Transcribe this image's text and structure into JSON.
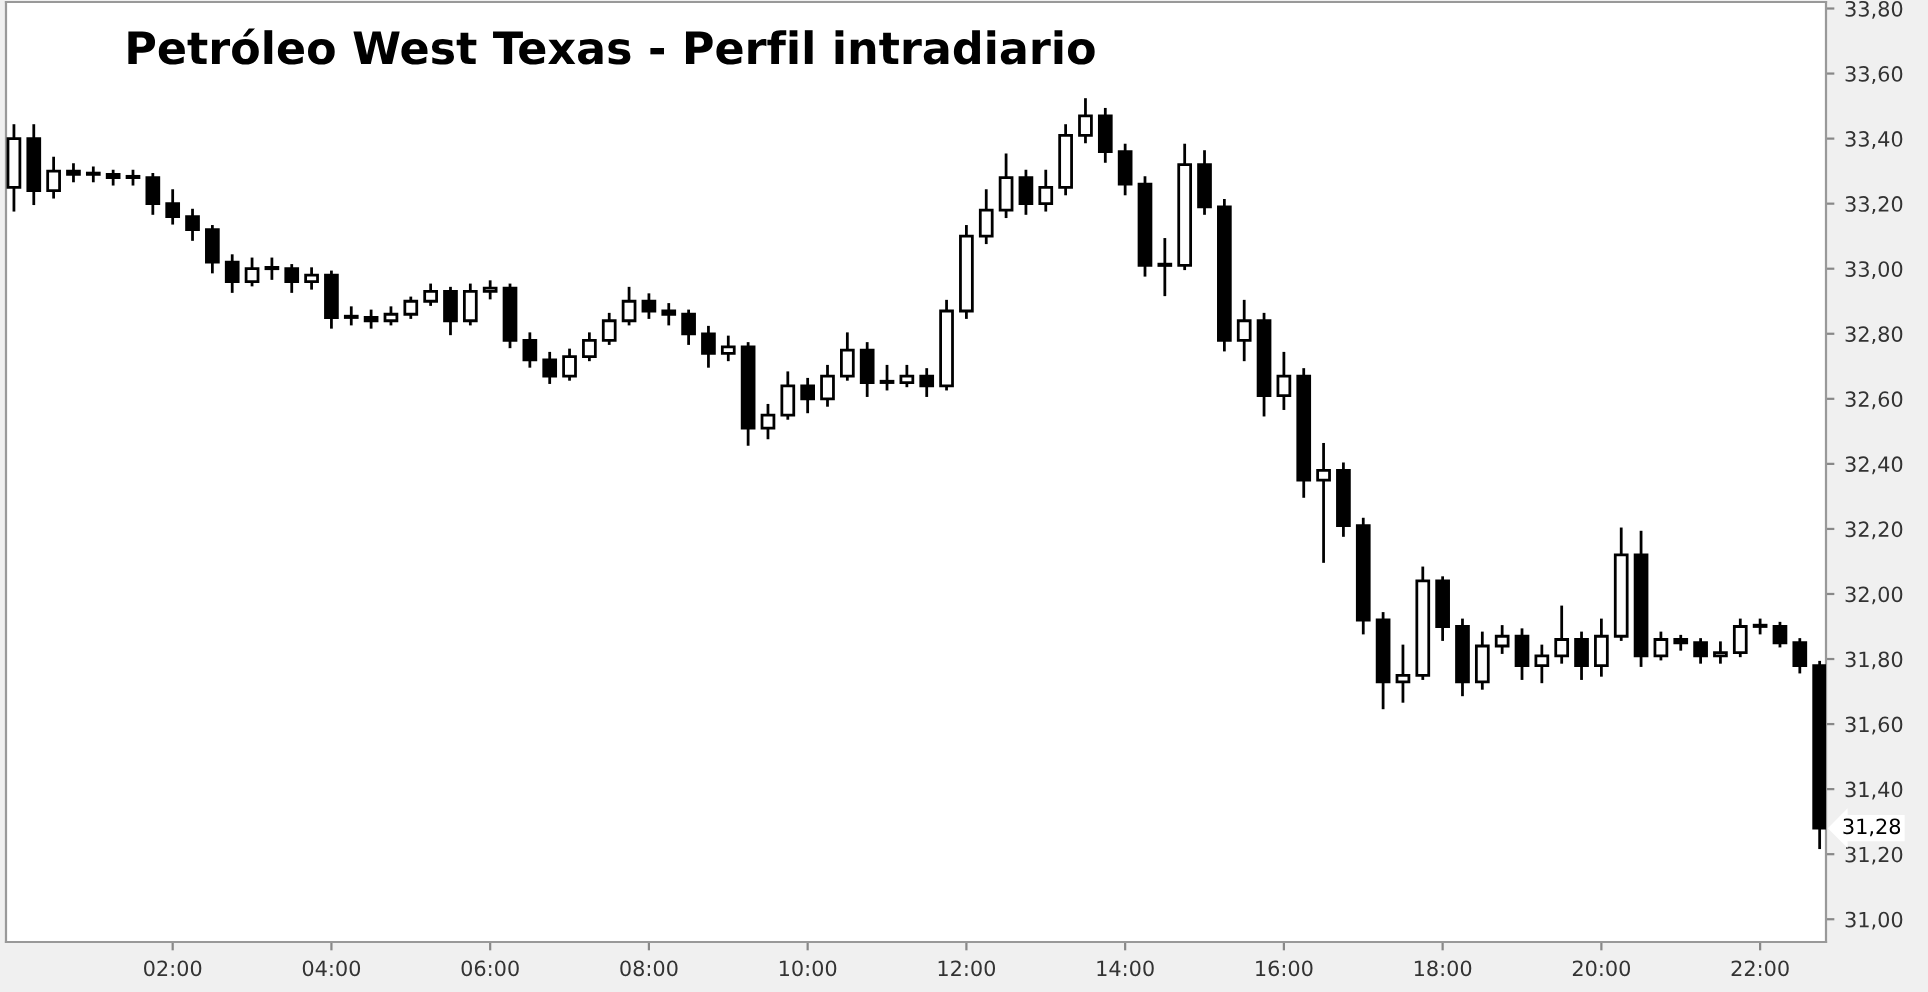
{
  "chart_data": {
    "type": "candlestick",
    "title": "Petróleo West Texas - Perfil intradiario",
    "x": [
      0,
      0.25,
      0.5,
      0.75,
      1,
      1.25,
      1.5,
      1.75,
      2,
      2.25,
      2.5,
      2.75,
      3,
      3.25,
      3.5,
      3.75,
      4,
      4.25,
      4.5,
      4.75,
      5,
      5.25,
      5.5,
      5.75,
      6,
      6.25,
      6.5,
      6.75,
      7,
      7.25,
      7.5,
      7.75,
      8,
      8.25,
      8.5,
      8.75,
      9,
      9.25,
      9.5,
      9.75,
      10,
      10.25,
      10.5,
      10.75,
      11,
      11.25,
      11.5,
      11.75,
      12,
      12.25,
      12.5,
      12.75,
      13,
      13.25,
      13.5,
      13.75,
      14,
      14.25,
      14.5,
      14.75,
      15,
      15.25,
      15.5,
      15.75,
      16,
      16.25,
      16.5,
      16.75,
      17,
      17.25,
      17.5,
      17.75,
      18,
      18.25,
      18.5,
      18.75,
      19,
      19.25,
      19.5,
      19.75,
      20,
      20.25,
      20.5,
      20.75,
      21,
      21.25,
      21.5,
      21.75,
      22,
      22.25,
      22.5,
      22.75
    ],
    "ohlc": [
      [
        33.25,
        33.44,
        33.18,
        33.4
      ],
      [
        33.4,
        33.44,
        33.2,
        33.24
      ],
      [
        33.24,
        33.34,
        33.22,
        33.3
      ],
      [
        33.3,
        33.32,
        33.27,
        33.29
      ],
      [
        33.29,
        33.31,
        33.27,
        33.29
      ],
      [
        33.29,
        33.3,
        33.26,
        33.28
      ],
      [
        33.28,
        33.3,
        33.26,
        33.28
      ],
      [
        33.28,
        33.29,
        33.17,
        33.2
      ],
      [
        33.2,
        33.24,
        33.14,
        33.16
      ],
      [
        33.16,
        33.18,
        33.09,
        33.12
      ],
      [
        33.12,
        33.13,
        32.99,
        33.02
      ],
      [
        33.02,
        33.04,
        32.93,
        32.96
      ],
      [
        32.96,
        33.03,
        32.95,
        33.0
      ],
      [
        33.0,
        33.03,
        32.97,
        33.0
      ],
      [
        33.0,
        33.01,
        32.93,
        32.96
      ],
      [
        32.96,
        33.0,
        32.94,
        32.98
      ],
      [
        32.98,
        32.99,
        32.82,
        32.85
      ],
      [
        32.85,
        32.88,
        32.83,
        32.85
      ],
      [
        32.85,
        32.87,
        32.82,
        32.84
      ],
      [
        32.84,
        32.88,
        32.83,
        32.86
      ],
      [
        32.86,
        32.91,
        32.85,
        32.9
      ],
      [
        32.9,
        32.95,
        32.89,
        32.93
      ],
      [
        32.93,
        32.94,
        32.8,
        32.84
      ],
      [
        32.84,
        32.95,
        32.83,
        32.93
      ],
      [
        32.93,
        32.96,
        32.91,
        32.94
      ],
      [
        32.94,
        32.95,
        32.76,
        32.78
      ],
      [
        32.78,
        32.8,
        32.7,
        32.72
      ],
      [
        32.72,
        32.74,
        32.65,
        32.67
      ],
      [
        32.67,
        32.75,
        32.66,
        32.73
      ],
      [
        32.73,
        32.8,
        32.72,
        32.78
      ],
      [
        32.78,
        32.86,
        32.77,
        32.84
      ],
      [
        32.84,
        32.94,
        32.83,
        32.9
      ],
      [
        32.9,
        32.92,
        32.85,
        32.87
      ],
      [
        32.87,
        32.89,
        32.83,
        32.86
      ],
      [
        32.86,
        32.87,
        32.77,
        32.8
      ],
      [
        32.8,
        32.82,
        32.7,
        32.74
      ],
      [
        32.74,
        32.79,
        32.72,
        32.76
      ],
      [
        32.76,
        32.77,
        32.46,
        32.51
      ],
      [
        32.51,
        32.58,
        32.48,
        32.55
      ],
      [
        32.55,
        32.68,
        32.54,
        32.64
      ],
      [
        32.64,
        32.66,
        32.56,
        32.6
      ],
      [
        32.6,
        32.7,
        32.58,
        32.67
      ],
      [
        32.67,
        32.8,
        32.66,
        32.75
      ],
      [
        32.75,
        32.77,
        32.61,
        32.65
      ],
      [
        32.65,
        32.7,
        32.63,
        32.65
      ],
      [
        32.65,
        32.7,
        32.64,
        32.67
      ],
      [
        32.67,
        32.69,
        32.61,
        32.64
      ],
      [
        32.64,
        32.9,
        32.63,
        32.87
      ],
      [
        32.87,
        33.13,
        32.85,
        33.1
      ],
      [
        33.1,
        33.24,
        33.08,
        33.18
      ],
      [
        33.18,
        33.35,
        33.16,
        33.28
      ],
      [
        33.28,
        33.3,
        33.17,
        33.2
      ],
      [
        33.2,
        33.3,
        33.18,
        33.25
      ],
      [
        33.25,
        33.44,
        33.23,
        33.41
      ],
      [
        33.41,
        33.52,
        33.39,
        33.47
      ],
      [
        33.47,
        33.49,
        33.33,
        33.36
      ],
      [
        33.36,
        33.38,
        33.23,
        33.26
      ],
      [
        33.26,
        33.28,
        32.98,
        33.01
      ],
      [
        33.01,
        33.09,
        32.92,
        33.01
      ],
      [
        33.01,
        33.38,
        33.0,
        33.32
      ],
      [
        33.32,
        33.36,
        33.17,
        33.19
      ],
      [
        33.19,
        33.21,
        32.75,
        32.78
      ],
      [
        32.78,
        32.9,
        32.72,
        32.84
      ],
      [
        32.84,
        32.86,
        32.55,
        32.61
      ],
      [
        32.61,
        32.74,
        32.57,
        32.67
      ],
      [
        32.67,
        32.69,
        32.3,
        32.35
      ],
      [
        32.35,
        32.46,
        32.1,
        32.38
      ],
      [
        32.38,
        32.4,
        32.18,
        32.21
      ],
      [
        32.21,
        32.23,
        31.88,
        31.92
      ],
      [
        31.92,
        31.94,
        31.65,
        31.73
      ],
      [
        31.73,
        31.84,
        31.67,
        31.75
      ],
      [
        31.75,
        32.08,
        31.74,
        32.04
      ],
      [
        32.04,
        32.05,
        31.86,
        31.9
      ],
      [
        31.9,
        31.92,
        31.69,
        31.73
      ],
      [
        31.73,
        31.88,
        31.71,
        31.84
      ],
      [
        31.84,
        31.9,
        31.82,
        31.87
      ],
      [
        31.87,
        31.89,
        31.74,
        31.78
      ],
      [
        31.78,
        31.84,
        31.73,
        31.81
      ],
      [
        31.81,
        31.96,
        31.79,
        31.86
      ],
      [
        31.86,
        31.88,
        31.74,
        31.78
      ],
      [
        31.78,
        31.92,
        31.75,
        31.87
      ],
      [
        31.87,
        32.2,
        31.86,
        32.12
      ],
      [
        32.12,
        32.19,
        31.78,
        31.81
      ],
      [
        31.81,
        31.88,
        31.8,
        31.86
      ],
      [
        31.86,
        31.87,
        31.83,
        31.85
      ],
      [
        31.85,
        31.86,
        31.79,
        31.81
      ],
      [
        31.81,
        31.85,
        31.79,
        31.82
      ],
      [
        31.82,
        31.92,
        31.81,
        31.9
      ],
      [
        31.9,
        31.92,
        31.88,
        31.9
      ],
      [
        31.9,
        31.91,
        31.84,
        31.85
      ],
      [
        31.85,
        31.86,
        31.76,
        31.78
      ],
      [
        31.78,
        31.79,
        31.22,
        31.28
      ]
    ],
    "color": "#000000",
    "xlim": [
      -0.1,
      22.83
    ],
    "ylim": [
      30.93,
      33.82
    ],
    "xticks": [
      {
        "value": 2,
        "label": "02:00"
      },
      {
        "value": 4,
        "label": "04:00"
      },
      {
        "value": 6,
        "label": "06:00"
      },
      {
        "value": 8,
        "label": "08:00"
      },
      {
        "value": 10,
        "label": "10:00"
      },
      {
        "value": 12,
        "label": "12:00"
      },
      {
        "value": 14,
        "label": "14:00"
      },
      {
        "value": 16,
        "label": "16:00"
      },
      {
        "value": 18,
        "label": "18:00"
      },
      {
        "value": 20,
        "label": "20:00"
      },
      {
        "value": 22,
        "label": "22:00"
      }
    ],
    "yticks": [
      {
        "value": 31,
        "label": "31,00"
      },
      {
        "value": 31.2,
        "label": "31,20"
      },
      {
        "value": 31.4,
        "label": "31,40"
      },
      {
        "value": 31.6,
        "label": "31,60"
      },
      {
        "value": 31.8,
        "label": "31,80"
      },
      {
        "value": 32,
        "label": "32,00"
      },
      {
        "value": 32.2,
        "label": "32,20"
      },
      {
        "value": 32.4,
        "label": "32,40"
      },
      {
        "value": 32.6,
        "label": "32,60"
      },
      {
        "value": 32.8,
        "label": "32,80"
      },
      {
        "value": 33,
        "label": "33,00"
      },
      {
        "value": 33.2,
        "label": "33,20"
      },
      {
        "value": 33.4,
        "label": "33,40"
      },
      {
        "value": 33.6,
        "label": "33,60"
      },
      {
        "value": 33.8,
        "label": "33,80"
      }
    ],
    "annotations": [
      {
        "text": "31,28",
        "x": 22.75,
        "y": 31.28
      }
    ],
    "grid": false,
    "legend": false
  }
}
